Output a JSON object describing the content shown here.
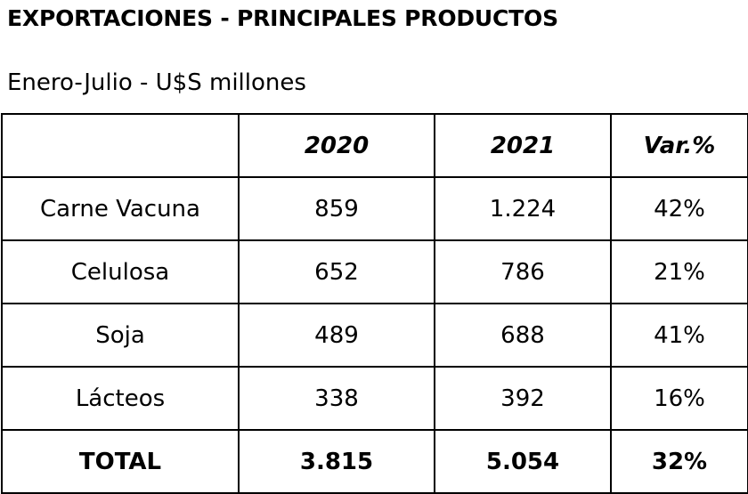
{
  "title": "EXPORTACIONES - PRINCIPALES PRODUCTOS",
  "subtitle": "Enero-Julio - U$S millones",
  "table": {
    "headers": [
      "",
      "2020",
      "2021",
      "Var.%"
    ],
    "rows": [
      [
        "Carne Vacuna",
        "859",
        "1.224",
        "42%"
      ],
      [
        "Celulosa",
        "652",
        "786",
        "21%"
      ],
      [
        "Soja",
        "489",
        "688",
        "41%"
      ],
      [
        "Lácteos",
        "338",
        "392",
        "16%"
      ]
    ],
    "total": [
      "TOTAL",
      "3.815",
      "5.054",
      "32%"
    ]
  }
}
